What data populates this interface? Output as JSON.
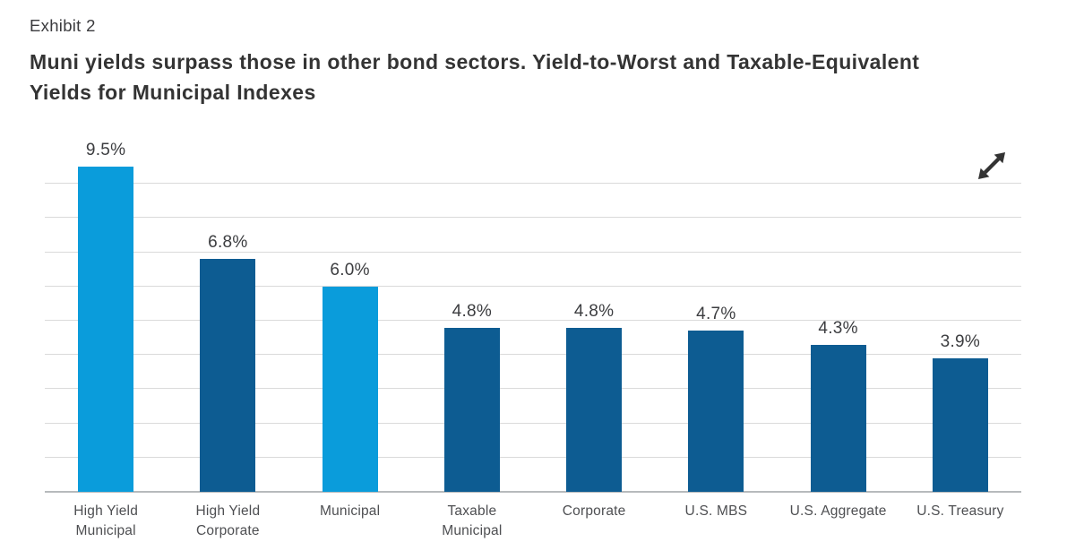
{
  "header": {
    "exhibit_label": "Exhibit 2",
    "title": "Muni yields surpass those in other bond sectors. Yield-to-Worst and Taxable-Equivalent Yields for Municipal Indexes",
    "title_lines": [
      "Muni yields surpass those in other bond sectors. Yield-to-Worst and Taxable-Equivalent",
      "Yields for Municipal Indexes"
    ]
  },
  "chart": {
    "expand_button": {
      "icon": "expand-diagonal-arrows",
      "tooltip": "Expand chart"
    }
  },
  "colors": {
    "bar_light_blue": "#0A9CDB",
    "bar_dark_blue": "#0D5C92",
    "gridline": "#DADADA",
    "axis_line": "#B7BABC",
    "value_label_text": "#3C3D40",
    "category_label_text": "#4E4F52",
    "title_text": "#343434",
    "icon": "#333333"
  },
  "chart_data": {
    "type": "bar",
    "title": "Muni yields surpass those in other bond sectors. Yield-to-Worst and Taxable-Equivalent Yields for Municipal Indexes",
    "categories": [
      "High Yield\nMunicipal",
      "High Yield\nCorporate",
      "Municipal",
      "Taxable\nMunicipal",
      "Corporate",
      "U.S. MBS",
      "U.S. Aggregate",
      "U.S. Treasury"
    ],
    "values": [
      9.5,
      6.8,
      6.0,
      4.8,
      4.8,
      4.7,
      4.3,
      3.9
    ],
    "value_labels": [
      "9.5%",
      "6.8%",
      "6.0%",
      "4.8%",
      "4.8%",
      "4.7%",
      "4.3%",
      "3.9%"
    ],
    "bar_colors": [
      "#0A9CDB",
      "#0D5C92",
      "#0A9CDB",
      "#0D5C92",
      "#0D5C92",
      "#0D5C92",
      "#0D5C92",
      "#0D5C92"
    ],
    "unit": "%",
    "xlabel": "",
    "ylabel": "",
    "ylim": [
      0,
      10.2
    ],
    "grid_interval": 1,
    "gridlines_at": [
      1,
      2,
      3,
      4,
      5,
      6,
      7,
      8,
      9
    ],
    "grid": "horizontal",
    "legend": "none",
    "y_axis_labels_visible": false
  }
}
